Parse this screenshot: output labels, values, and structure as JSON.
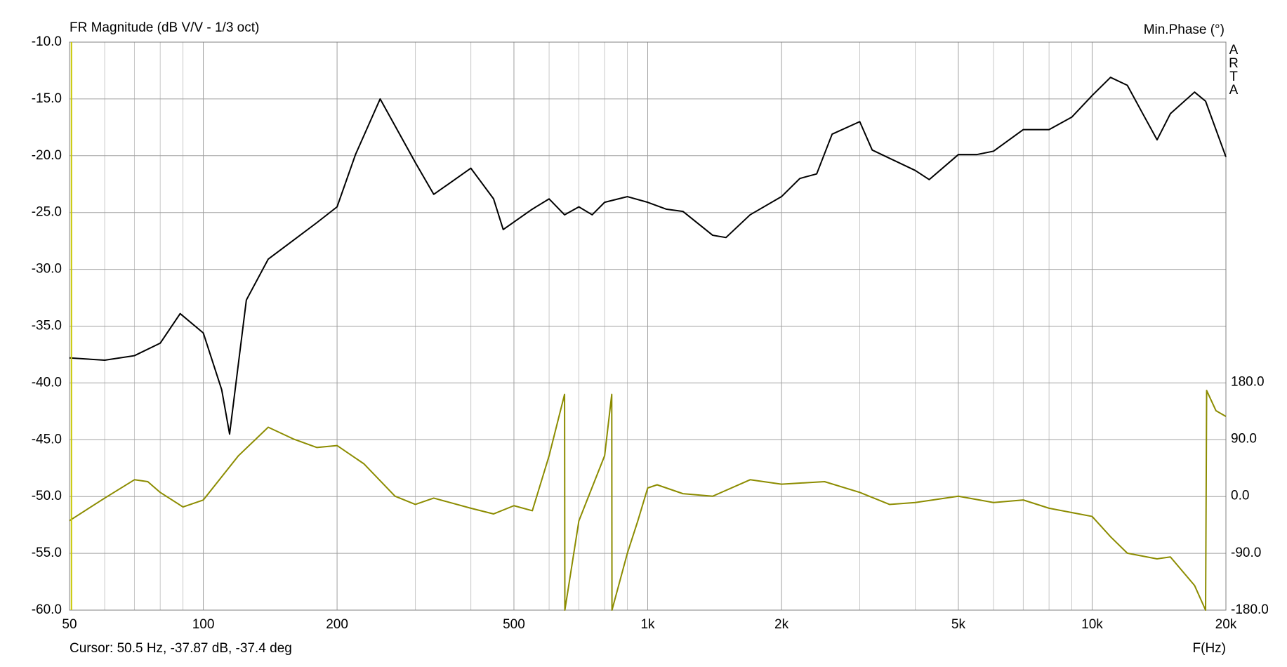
{
  "chart_data": {
    "type": "line",
    "title": "FR Magnitude (dB V/V - 1/3 oct)",
    "y2_title": "Min.Phase (°)",
    "watermark": [
      "A",
      "R",
      "T",
      "A"
    ],
    "xlabel": "F(Hz)",
    "cursor": {
      "label": "Cursor: 50.5 Hz, -37.87 dB, -37.4 deg",
      "x": 50.5,
      "color": "#c8c800"
    },
    "xscale": "log",
    "grid": true,
    "xlim": [
      50,
      20000
    ],
    "xticks": [
      50,
      100,
      200,
      500,
      {
        "value": 1000,
        "label": "1k"
      },
      {
        "value": 2000,
        "label": "2k"
      },
      {
        "value": 5000,
        "label": "5k"
      },
      {
        "value": 10000,
        "label": "10k"
      },
      {
        "value": 20000,
        "label": "20k"
      }
    ],
    "xminorticks": [
      60,
      70,
      80,
      90,
      300,
      400,
      600,
      700,
      800,
      900,
      3000,
      4000,
      6000,
      7000,
      8000,
      9000
    ],
    "ylim": [
      -60,
      -10
    ],
    "yticks": [
      {
        "value": -10,
        "label": "-10.0"
      },
      {
        "value": -15,
        "label": "-15.0"
      },
      {
        "value": -20,
        "label": "-20.0"
      },
      {
        "value": -25,
        "label": "-25.0"
      },
      {
        "value": -30,
        "label": "-30.0"
      },
      {
        "value": -35,
        "label": "-35.0"
      },
      {
        "value": -40,
        "label": "-40.0"
      },
      {
        "value": -45,
        "label": "-45.0"
      },
      {
        "value": -50,
        "label": "-50.0"
      },
      {
        "value": -55,
        "label": "-55.0"
      },
      {
        "value": -60,
        "label": "-60.0"
      }
    ],
    "y2lim": [
      -180,
      717.4
    ],
    "y2ticks": [
      {
        "value": 180,
        "label": "180.0"
      },
      {
        "value": 90,
        "label": "90.0"
      },
      {
        "value": 0,
        "label": "0.0"
      },
      {
        "value": -90,
        "label": "-90.0"
      },
      {
        "value": -180,
        "label": "-180.0"
      }
    ],
    "series": [
      {
        "color": "#000000",
        "x": [
          50,
          60,
          70,
          80,
          88.7,
          100,
          110,
          114.6,
          125,
          140,
          160,
          180,
          200,
          220,
          250,
          300,
          330,
          350,
          400,
          450,
          473,
          550,
          600,
          650,
          700,
          750,
          800,
          900,
          1000,
          1100,
          1200,
          1400,
          1500,
          1700,
          2000,
          2200,
          2400,
          2600,
          3000,
          3200,
          4000,
          4300,
          5000,
          5500,
          6000,
          7000,
          8000,
          9000,
          10000,
          11000,
          12000,
          13000,
          14000,
          15000,
          17000,
          18000,
          20000
        ],
        "values": [
          -37.8,
          -38.0,
          -37.6,
          -36.5,
          -33.9,
          -35.6,
          -40.6,
          -44.5,
          -32.7,
          -29.1,
          -27.4,
          -25.9,
          -24.5,
          -19.9,
          -15.0,
          -20.6,
          -23.4,
          -22.7,
          -21.1,
          -23.8,
          -26.5,
          -24.7,
          -23.8,
          -25.2,
          -24.5,
          -25.2,
          -24.1,
          -23.6,
          -24.1,
          -24.7,
          -24.9,
          -27.0,
          -27.2,
          -25.2,
          -23.6,
          -22.0,
          -21.6,
          -18.1,
          -17.0,
          -19.5,
          -21.3,
          -22.1,
          -19.9,
          -19.9,
          -19.6,
          -17.7,
          -17.7,
          -16.6,
          -14.7,
          -13.1,
          -13.8,
          -16.3,
          -18.6,
          -16.3,
          -14.4,
          -15.2,
          -20.1
        ]
      },
      {
        "color": "#8c8c00",
        "axis": "y2",
        "x": [
          50,
          60,
          70,
          75,
          80,
          90,
          100,
          120,
          140,
          160,
          180,
          200,
          230,
          270,
          300,
          330,
          400,
          450,
          500,
          550,
          600,
          650,
          651,
          700,
          800,
          830,
          831,
          900,
          950,
          1000,
          1050,
          1200,
          1400,
          1700,
          2000,
          2500,
          3000,
          3500,
          4000,
          5000,
          6000,
          7000,
          8000,
          10000,
          11000,
          12000,
          14000,
          15000,
          17000,
          18000,
          18100,
          19000,
          20000
        ],
        "values": [
          -38.6,
          -3,
          26,
          23,
          6,
          -17,
          -6,
          64,
          109,
          90,
          77,
          80,
          51,
          0,
          -13,
          -3,
          -19,
          -28,
          -15,
          -23,
          64,
          161,
          -180,
          -39,
          64,
          161,
          -180,
          -90,
          -39,
          13,
          18,
          4,
          0,
          26,
          19,
          23,
          6,
          -13,
          -10,
          0,
          -10,
          -6,
          -19,
          -32,
          -64,
          -90,
          -99,
          -96,
          -141,
          -180,
          167,
          135,
          126
        ]
      }
    ]
  }
}
